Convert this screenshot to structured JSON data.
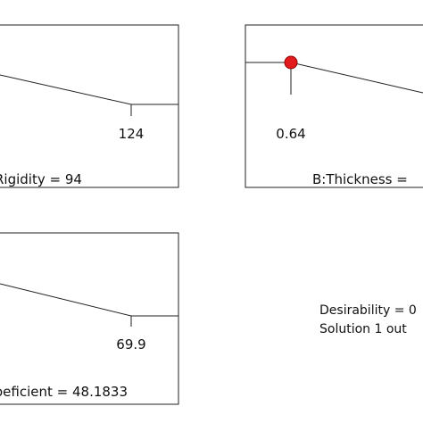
{
  "chart_data": [
    {
      "type": "line",
      "panel": "top-left",
      "caption": "Rigidity = 94",
      "tick_label": "124",
      "marker": false,
      "color": "#222222"
    },
    {
      "type": "line",
      "panel": "top-right",
      "caption": "B:Thickness =",
      "tick_label": "0.64",
      "marker": true,
      "marker_color": "#e31a1c",
      "color": "#222222"
    },
    {
      "type": "line",
      "panel": "bottom-left",
      "caption": "oeficient = 48.1833",
      "tick_label": "69.9",
      "marker": false,
      "color": "#222222"
    }
  ],
  "summary": {
    "desirability": "Desirability = 0",
    "solution": "Solution 1 out"
  }
}
